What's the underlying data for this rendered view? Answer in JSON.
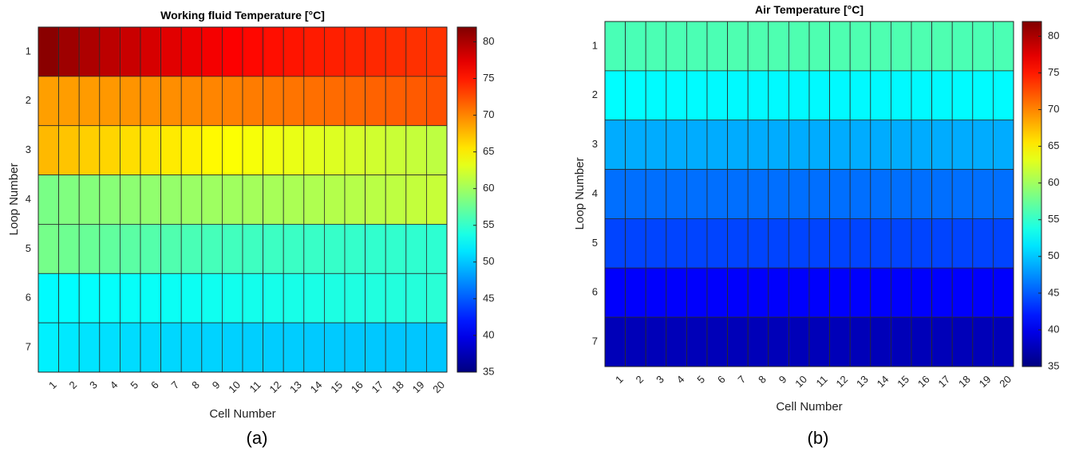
{
  "chart_data": [
    {
      "type": "heatmap",
      "title": "Working fluid Temperature [°C]",
      "xlabel": "Cell Number",
      "ylabel": "Loop Number",
      "panel_label": "(a)",
      "x_categories": [
        "1",
        "2",
        "3",
        "4",
        "5",
        "6",
        "7",
        "8",
        "9",
        "10",
        "11",
        "12",
        "13",
        "14",
        "15",
        "16",
        "17",
        "18",
        "19",
        "20"
      ],
      "y_categories": [
        "1",
        "2",
        "3",
        "4",
        "5",
        "6",
        "7"
      ],
      "colorbar": {
        "min": 35,
        "max": 82,
        "ticks": [
          "35",
          "40",
          "45",
          "50",
          "55",
          "60",
          "65",
          "70",
          "75",
          "80"
        ],
        "colormap": "jet"
      },
      "values": [
        [
          81.5,
          80.6,
          79.9,
          79.2,
          78.6,
          78.0,
          77.5,
          77.0,
          76.6,
          76.2,
          75.8,
          75.5,
          75.2,
          74.9,
          74.7,
          74.5,
          74.3,
          74.1,
          73.9,
          73.8
        ],
        [
          68.8,
          68.9,
          69.0,
          69.1,
          69.3,
          69.5,
          69.6,
          69.8,
          70.0,
          70.2,
          70.4,
          70.6,
          70.8,
          71.0,
          71.2,
          71.4,
          71.6,
          71.8,
          72.0,
          72.4
        ],
        [
          67.6,
          67.1,
          66.6,
          66.3,
          65.9,
          65.6,
          65.3,
          65.0,
          64.6,
          64.3,
          64.0,
          63.7,
          63.4,
          63.1,
          62.8,
          62.5,
          62.2,
          61.9,
          61.7,
          61.4
        ],
        [
          58.2,
          58.5,
          58.7,
          58.9,
          59.1,
          59.3,
          59.5,
          59.7,
          59.9,
          60.0,
          60.2,
          60.3,
          60.5,
          60.7,
          60.9,
          61.0,
          61.2,
          61.4,
          61.6,
          61.8
        ],
        [
          58.0,
          57.7,
          57.4,
          57.1,
          56.8,
          56.5,
          56.3,
          56.0,
          55.8,
          55.6,
          55.5,
          55.4,
          55.3,
          55.2,
          55.1,
          55.0,
          54.9,
          54.9,
          54.8,
          54.7
        ],
        [
          52.5,
          52.6,
          52.7,
          52.8,
          52.9,
          53.0,
          53.1,
          53.2,
          53.3,
          53.4,
          53.5,
          53.6,
          53.7,
          53.8,
          53.9,
          54.0,
          54.1,
          54.2,
          54.3,
          54.5
        ],
        [
          52.0,
          51.6,
          51.4,
          51.2,
          51.0,
          50.9,
          50.8,
          50.7,
          50.6,
          50.5,
          50.4,
          50.3,
          50.3,
          50.2,
          50.2,
          50.1,
          50.1,
          50.0,
          50.0,
          50.0
        ]
      ]
    },
    {
      "type": "heatmap",
      "title": "Air Temperature [°C]",
      "xlabel": "Cell Number",
      "ylabel": "Loop Number",
      "panel_label": "(b)",
      "x_categories": [
        "1",
        "2",
        "3",
        "4",
        "5",
        "6",
        "7",
        "8",
        "9",
        "10",
        "11",
        "12",
        "13",
        "14",
        "15",
        "16",
        "17",
        "18",
        "19",
        "20"
      ],
      "y_categories": [
        "1",
        "2",
        "3",
        "4",
        "5",
        "6",
        "7"
      ],
      "colorbar": {
        "min": 35,
        "max": 82,
        "ticks": [
          "35",
          "40",
          "45",
          "50",
          "55",
          "60",
          "65",
          "70",
          "75",
          "80"
        ],
        "colormap": "jet"
      },
      "values": [
        [
          56.0,
          56.0,
          56.1,
          56.1,
          56.1,
          56.1,
          56.2,
          56.2,
          56.2,
          56.2,
          56.2,
          56.2,
          56.2,
          56.2,
          56.2,
          56.2,
          56.2,
          56.1,
          56.1,
          56.1
        ],
        [
          52.6,
          52.6,
          52.5,
          52.5,
          52.5,
          52.4,
          52.4,
          52.4,
          52.4,
          52.4,
          52.4,
          52.4,
          52.4,
          52.4,
          52.4,
          52.4,
          52.4,
          52.5,
          52.5,
          52.5
        ],
        [
          48.8,
          48.8,
          48.8,
          48.8,
          48.8,
          48.8,
          48.8,
          48.8,
          48.8,
          48.8,
          48.8,
          48.8,
          48.8,
          48.8,
          48.8,
          48.8,
          48.8,
          48.8,
          48.8,
          48.8
        ],
        [
          46.0,
          46.0,
          46.0,
          46.0,
          46.0,
          46.0,
          46.0,
          46.0,
          46.0,
          46.0,
          46.0,
          46.0,
          46.0,
          46.0,
          46.0,
          46.0,
          46.0,
          46.0,
          46.0,
          46.0
        ],
        [
          44.0,
          44.0,
          44.0,
          44.0,
          44.0,
          44.0,
          44.0,
          44.0,
          44.0,
          44.0,
          44.0,
          44.0,
          44.0,
          44.0,
          44.0,
          44.0,
          44.0,
          44.0,
          44.0,
          44.0
        ],
        [
          40.8,
          40.8,
          40.8,
          40.8,
          40.8,
          40.8,
          40.8,
          40.8,
          40.8,
          40.8,
          40.8,
          40.8,
          40.8,
          40.8,
          40.8,
          40.8,
          40.8,
          40.8,
          40.8,
          40.8
        ],
        [
          37.6,
          37.6,
          37.6,
          37.6,
          37.6,
          37.6,
          37.6,
          37.6,
          37.6,
          37.6,
          37.6,
          37.6,
          37.6,
          37.6,
          37.6,
          37.6,
          37.6,
          37.6,
          37.6,
          37.6
        ]
      ]
    }
  ]
}
